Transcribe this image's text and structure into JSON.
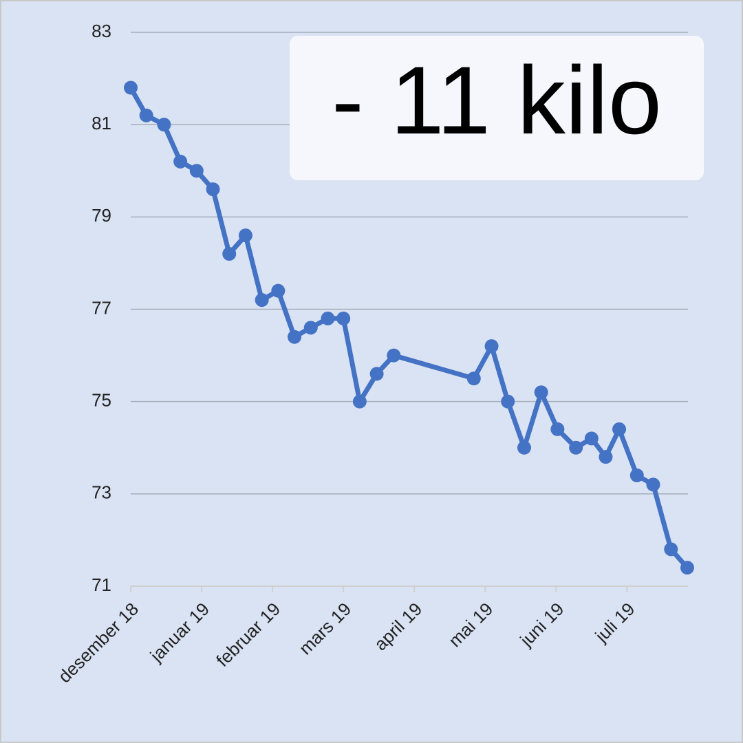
{
  "chart_data": {
    "type": "line",
    "annotation": "- 11 kilo",
    "x": [
      0,
      0.22,
      0.47,
      0.7,
      0.93,
      1.16,
      1.39,
      1.62,
      1.85,
      2.08,
      2.31,
      2.54,
      2.78,
      3.0,
      3.23,
      3.47,
      3.71,
      4.84,
      5.09,
      5.32,
      5.55,
      5.79,
      6.02,
      6.28,
      6.5,
      6.7,
      6.89,
      7.14,
      7.37,
      7.62,
      7.85
    ],
    "values": [
      81.8,
      81.2,
      81.0,
      80.2,
      80.0,
      79.6,
      78.2,
      78.6,
      77.2,
      77.4,
      76.4,
      76.6,
      76.8,
      76.8,
      75.0,
      75.6,
      76.0,
      75.5,
      76.2,
      75.0,
      74.0,
      75.2,
      74.4,
      74.0,
      74.2,
      73.8,
      74.4,
      73.4,
      73.2,
      71.8,
      71.4
    ],
    "color": "#4472c4",
    "xlim": [
      0,
      7.86
    ],
    "xticks": [
      {
        "value": 0,
        "label": "desember 18"
      },
      {
        "value": 1,
        "label": "januar 19"
      },
      {
        "value": 2,
        "label": "februar 19"
      },
      {
        "value": 3,
        "label": "mars 19"
      },
      {
        "value": 4,
        "label": "april 19"
      },
      {
        "value": 5,
        "label": "mai 19"
      },
      {
        "value": 6,
        "label": "juni 19"
      },
      {
        "value": 7,
        "label": "juli 19"
      }
    ],
    "ylim": [
      71,
      83
    ],
    "yticks": [
      71,
      73,
      75,
      77,
      79,
      81,
      83
    ],
    "grid": true
  }
}
